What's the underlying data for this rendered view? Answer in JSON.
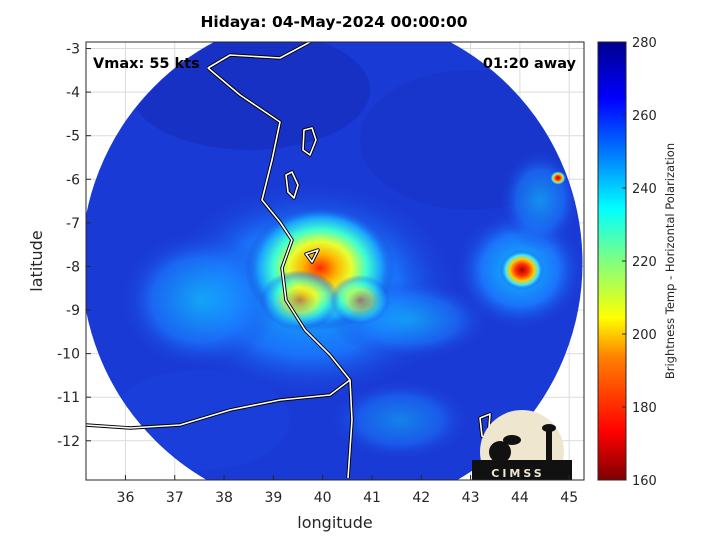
{
  "title": "Hidaya: 04-May-2024 00:00:00",
  "vmax_text": "Vmax: 55 kts",
  "time_away_text": "01:20 away",
  "xlabel": "longitude",
  "ylabel": "latitude",
  "colorbar_label": "Brightness Temp - Horizontal Polarization",
  "logo_text": "CIMSS",
  "colors": {
    "colormap": [
      "#7f0000",
      "#ff0000",
      "#ff8000",
      "#ffff00",
      "#80ff80",
      "#00ffff",
      "#0080ff",
      "#0000ff",
      "#00008f"
    ],
    "background_disc": "#1a3ad6",
    "coastline": "#ffffff"
  },
  "chart_data": {
    "type": "heatmap",
    "title": "Hidaya: 04-May-2024 00:00:00",
    "xlabel": "longitude",
    "ylabel": "latitude",
    "xlim": [
      35.2,
      45.3
    ],
    "ylim": [
      -12.9,
      -2.85
    ],
    "xticks": [
      36,
      37,
      38,
      39,
      40,
      41,
      42,
      43,
      44,
      45
    ],
    "yticks": [
      -3,
      -4,
      -5,
      -6,
      -7,
      -8,
      -9,
      -10,
      -11,
      -12
    ],
    "grid": true,
    "colorbar": {
      "label": "Brightness Temp - Horizontal Polarization",
      "range": [
        160,
        280
      ],
      "ticks": [
        160,
        180,
        200,
        220,
        240,
        260,
        280
      ]
    },
    "features": [
      {
        "lon": 40.2,
        "lat": -8.3,
        "value": 185
      },
      {
        "lon": 44.1,
        "lat": -8.0,
        "value": 175
      },
      {
        "lon": 44.8,
        "lat": -6.0,
        "value": 180
      }
    ]
  }
}
